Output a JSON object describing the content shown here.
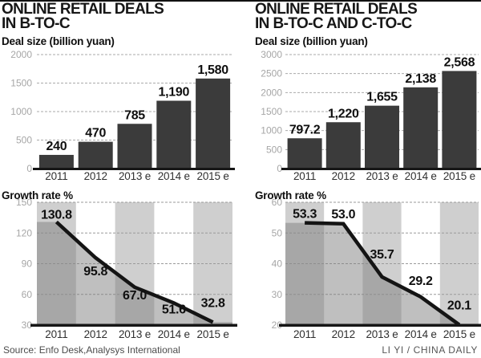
{
  "page": {
    "source": "Source: Enfo Desk,Analysys International",
    "credit": "LI YI / CHINA DAILY"
  },
  "panels": [
    {
      "title_line1": "ONLINE RETAIL DEALS",
      "title_line2": "IN B-TO-C",
      "bar_subtitle": "Deal size (billion yuan)",
      "growth_subtitle": "Growth rate %"
    },
    {
      "title_line1": "ONLINE RETAIL DEALS",
      "title_line2": "IN B-TO-C AND C-TO-C",
      "bar_subtitle": "Deal size (billion yuan)",
      "growth_subtitle": "Growth rate %"
    }
  ],
  "chart_data": [
    {
      "type": "bar",
      "panel": "left",
      "title": "Deal size (billion yuan)",
      "categories": [
        "2011",
        "2012",
        "2013 e",
        "2014 e",
        "2015 e"
      ],
      "values": [
        240,
        470,
        785,
        1190,
        1580
      ],
      "value_labels": [
        "240",
        "470",
        "785",
        "1,190",
        "1,580"
      ],
      "ylim": [
        0,
        2000
      ],
      "yticks": [
        0,
        500,
        1000,
        1500,
        2000
      ],
      "grid": "dashed",
      "legend": "none"
    },
    {
      "type": "line",
      "panel": "left",
      "title": "Growth rate %",
      "categories": [
        "2011",
        "2012",
        "2013 e",
        "2014 e",
        "2015 e"
      ],
      "values": [
        130.8,
        95.8,
        67.0,
        51.6,
        32.8
      ],
      "value_labels": [
        "130.8",
        "95.8",
        "67.0",
        "51.6",
        "32.8"
      ],
      "ylim": [
        30,
        150
      ],
      "yticks": [
        30,
        60,
        90,
        120,
        150
      ],
      "grid": "dashed",
      "legend": "none"
    },
    {
      "type": "bar",
      "panel": "right",
      "title": "Deal size (billion yuan)",
      "categories": [
        "2011",
        "2012",
        "2013 e",
        "2014 e",
        "2015 e"
      ],
      "values": [
        797.2,
        1220,
        1655,
        2138,
        2568
      ],
      "value_labels": [
        "797.2",
        "1,220",
        "1,655",
        "2,138",
        "2,568"
      ],
      "ylim": [
        0,
        3000
      ],
      "yticks": [
        0,
        500,
        1000,
        1500,
        2000,
        2500,
        3000
      ],
      "grid": "dashed",
      "legend": "none"
    },
    {
      "type": "line",
      "panel": "right",
      "title": "Growth rate %",
      "categories": [
        "2011",
        "2012",
        "2013 e",
        "2014 e",
        "2015 e"
      ],
      "values": [
        53.3,
        53.0,
        35.7,
        29.2,
        20.1
      ],
      "value_labels": [
        "53.3",
        "53.0",
        "35.7",
        "29.2",
        "20.1"
      ],
      "ylim": [
        20,
        60
      ],
      "yticks": [
        20,
        30,
        40,
        50,
        60
      ],
      "grid": "dashed",
      "legend": "none"
    }
  ],
  "colors": {
    "bar": "#3b3b3b",
    "band": "#cfcfcf",
    "area": "rgba(128,128,128,0.5)",
    "line": "#141414",
    "baseline": "#161616",
    "grid_bar": "#aaaaaa",
    "grid_growth": "#9a9a9a",
    "tick_text": "#a6a6a6"
  }
}
